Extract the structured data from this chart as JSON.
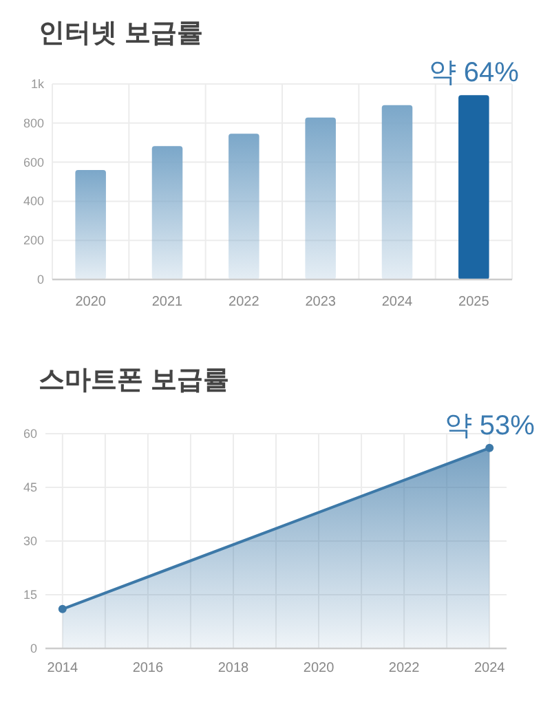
{
  "chart_data": [
    {
      "type": "bar",
      "title": "인터넷 보급률",
      "categories": [
        "2020",
        "2021",
        "2022",
        "2023",
        "2024",
        "2025"
      ],
      "values": [
        560,
        682,
        746,
        828,
        892,
        943
      ],
      "colors": [
        "#7ba7c9",
        "#7ba7c9",
        "#7ba7c9",
        "#7ba7c9",
        "#7ba7c9",
        "#1b66a3"
      ],
      "ylim": [
        0,
        1000
      ],
      "yticks": [
        0,
        200,
        400,
        600,
        800,
        {
          "value": 1000,
          "label": "1k"
        }
      ],
      "grid": true,
      "annotations": [
        {
          "text": "약 64%",
          "x": "2025",
          "y": 943
        }
      ]
    },
    {
      "type": "area",
      "title": "스마트폰 보급률",
      "x": [
        2014,
        2024
      ],
      "values": [
        11,
        56
      ],
      "color": "#3d79a8",
      "marker": "circle",
      "xlim": [
        2013.6,
        2024.4
      ],
      "xticks": [
        2014,
        {
          "value": 2015,
          "label": null
        },
        2016,
        {
          "value": 2017,
          "label": null
        },
        2018,
        {
          "value": 2019,
          "label": null
        },
        2020,
        {
          "value": 2021,
          "label": null
        },
        2022,
        {
          "value": 2023,
          "label": null
        },
        2024
      ],
      "ylim": [
        0,
        60
      ],
      "yticks": [
        0,
        15,
        30,
        45,
        60
      ],
      "grid": true,
      "annotations": [
        {
          "text": "약 53%",
          "x": 2024,
          "y": 56
        }
      ]
    }
  ]
}
